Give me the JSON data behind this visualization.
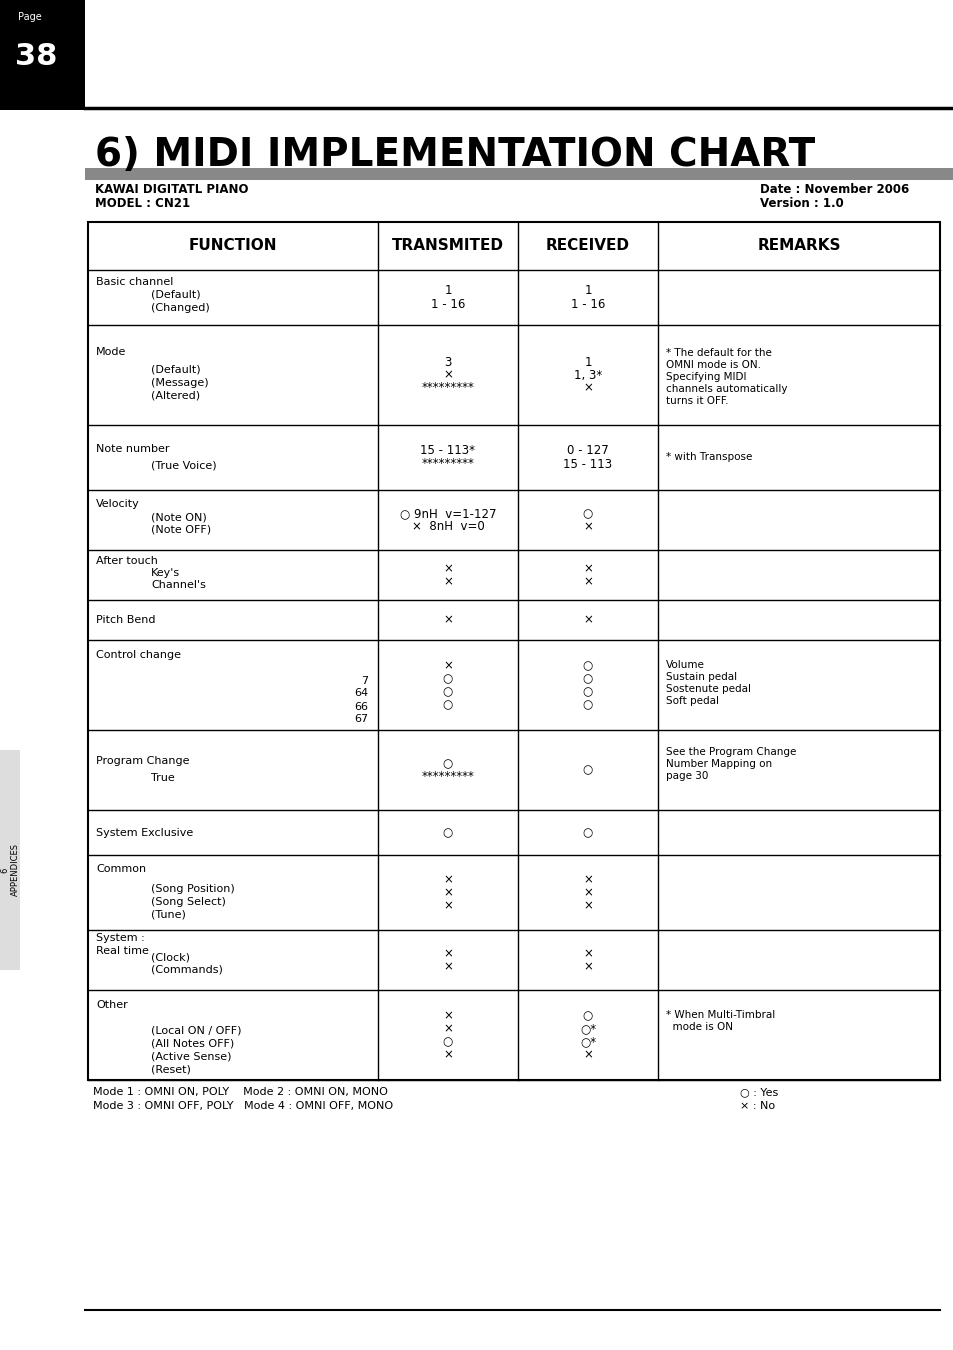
{
  "title": "6) MIDI IMPLEMENTATION CHART",
  "page_num": "38",
  "device_line1": "KAWAI DIGITATL PIANO",
  "device_line2": "MODEL : CN21",
  "date_line1": "Date : November 2006",
  "date_line2": "Version : 1.0",
  "col_headers": [
    "FUNCTION",
    "TRANSMITED",
    "RECEIVED",
    "REMARKS"
  ],
  "footer_left": [
    "Mode 1 : OMNI ON, POLY    Mode 2 : OMNI ON, MONO",
    "Mode 3 : OMNI OFF, POLY   Mode 4 : OMNI OFF, MONO"
  ],
  "footer_right": [
    "○ : Yes",
    "× : No"
  ],
  "sidebar_text": "6\nAPPENDICES",
  "rows": [
    {
      "func_main": "Basic channel",
      "func_sub": "(Default)\n(Changed)",
      "transmit": "1\n1 - 16",
      "receive": "1\n1 - 16",
      "remarks": ""
    },
    {
      "func_main": "Mode",
      "func_sub": "(Default)\n(Message)\n(Altered)",
      "transmit": "3\n×\n*********",
      "receive": "1\n1, 3*\n×",
      "remarks": "* The default for the\nOMNI mode is ON.\nSpecifying MIDI\nchannels automatically\nturns it OFF."
    },
    {
      "func_main": "Note number",
      "func_sub": "(True Voice)",
      "transmit": "15 - 113*\n*********",
      "receive": "0 - 127\n15 - 113",
      "remarks": "* with Transpose"
    },
    {
      "func_main": "Velocity",
      "func_sub": "(Note ON)\n(Note OFF)",
      "transmit": "○ 9nH  v=1-127\n×  8nH  v=0",
      "receive": "○\n×",
      "remarks": ""
    },
    {
      "func_main": "After touch",
      "func_sub": "Key's\nChannel's",
      "transmit": "×\n×",
      "receive": "×\n×",
      "remarks": ""
    },
    {
      "func_main": "Pitch Bend",
      "func_sub": "",
      "transmit": "×",
      "receive": "×",
      "remarks": ""
    },
    {
      "func_main": "Control change",
      "func_sub": "7\n64\n66\n67",
      "transmit": "×\n○\n○\n○",
      "receive": "○\n○\n○\n○",
      "remarks": "Volume\nSustain pedal\nSostenute pedal\nSoft pedal"
    },
    {
      "func_main": "Program Change",
      "func_sub": "True",
      "transmit": "○\n*********",
      "receive": "○",
      "remarks": "See the Program Change\nNumber Mapping on\npage 30"
    },
    {
      "func_main": "System Exclusive",
      "func_sub": "",
      "transmit": "○",
      "receive": "○",
      "remarks": ""
    },
    {
      "func_main": "Common",
      "func_sub": "(Song Position)\n(Song Select)\n(Tune)",
      "transmit": "×\n×\n×",
      "receive": "×\n×\n×",
      "remarks": ""
    },
    {
      "func_main": "System :\nReal time",
      "func_sub": "(Clock)\n(Commands)",
      "transmit": "×\n×",
      "receive": "×\n×",
      "remarks": ""
    },
    {
      "func_main": "Other",
      "func_sub": "(Local ON / OFF)\n(All Notes OFF)\n(Active Sense)\n(Reset)",
      "transmit": "×\n×\n○\n×",
      "receive": "○\n○*\n○*\n×",
      "remarks": "* When Multi-Timbral\n  mode is ON"
    }
  ]
}
